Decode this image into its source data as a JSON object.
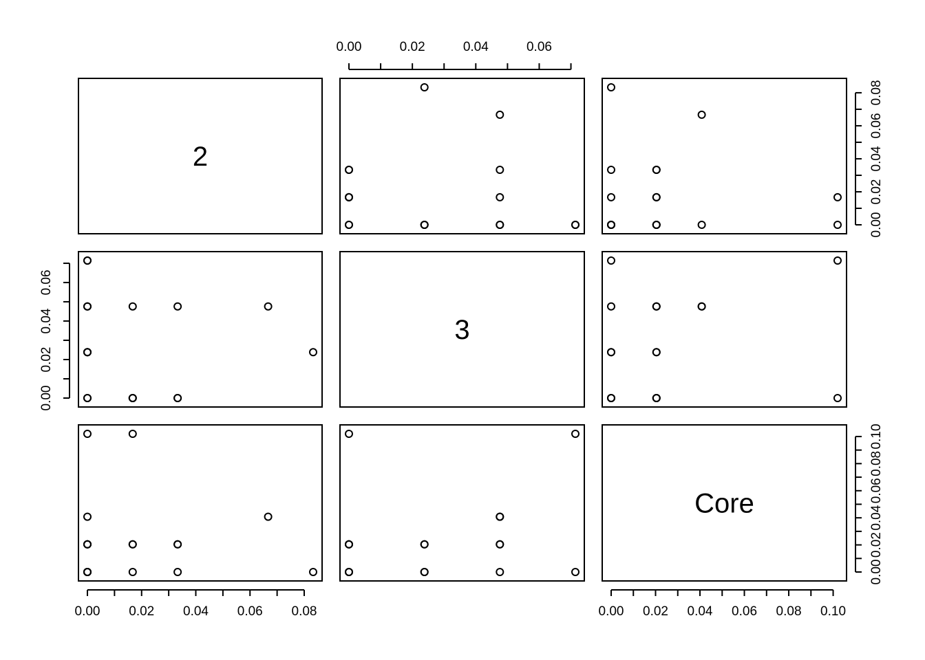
{
  "chart_data": {
    "type": "scatter",
    "kind": "pairs-scatterplot-matrix",
    "title": "",
    "variables": [
      "2",
      "3",
      "Core"
    ],
    "grid": false,
    "legend": "none",
    "axes": {
      "2": {
        "range": [
          0,
          0.0833
        ],
        "ticks": [
          0,
          0.02,
          0.04,
          0.06,
          0.08
        ],
        "tick_labels": [
          "0.00",
          "0.02",
          "0.04",
          "0.06",
          "0.08"
        ]
      },
      "3": {
        "range": [
          0,
          0.0714
        ],
        "ticks": [
          0,
          0.02,
          0.04,
          0.06
        ],
        "tick_labels": [
          "0.00",
          "0.02",
          "0.04",
          "0.06"
        ]
      },
      "Core": {
        "range": [
          0,
          0.102
        ],
        "ticks": [
          0,
          0.02,
          0.04,
          0.06,
          0.08,
          0.1
        ],
        "tick_labels": [
          "0.00",
          "0.02",
          "0.04",
          "0.06",
          "0.08",
          "0.10"
        ]
      }
    },
    "axis_placement": {
      "top": [
        "3"
      ],
      "bottom": [
        "2",
        "Core"
      ],
      "left": [
        "3"
      ],
      "right": [
        "2",
        "Core"
      ]
    },
    "observations": [
      {
        "v2": 0.0833,
        "v3": 0.0238,
        "core": 0.0
      },
      {
        "v2": 0.0667,
        "v3": 0.0476,
        "core": 0.0408
      },
      {
        "v2": 0.0333,
        "v3": 0.0,
        "core": 0.0
      },
      {
        "v2": 0.0333,
        "v3": 0.0476,
        "core": 0.0204
      },
      {
        "v2": 0.0333,
        "v3": 0.0,
        "core": 0.0204
      },
      {
        "v2": 0.0167,
        "v3": 0.0,
        "core": 0.0
      },
      {
        "v2": 0.0167,
        "v3": 0.0476,
        "core": 0.0204
      },
      {
        "v2": 0.0167,
        "v3": 0.0,
        "core": 0.102
      },
      {
        "v2": 0.0167,
        "v3": 0.0,
        "core": 0.0204
      },
      {
        "v2": 0.0,
        "v3": 0.0,
        "core": 0.0
      },
      {
        "v2": 0.0,
        "v3": 0.0238,
        "core": 0.0
      },
      {
        "v2": 0.0,
        "v3": 0.0476,
        "core": 0.0
      },
      {
        "v2": 0.0,
        "v3": 0.0714,
        "core": 0.0
      },
      {
        "v2": 0.0,
        "v3": 0.0,
        "core": 0.0204
      },
      {
        "v2": 0.0,
        "v3": 0.0238,
        "core": 0.0204
      },
      {
        "v2": 0.0,
        "v3": 0.0476,
        "core": 0.0408
      },
      {
        "v2": 0.0,
        "v3": 0.0714,
        "core": 0.102
      },
      {
        "v2": 0.0,
        "v3": 0.0238,
        "core": 0.0204
      }
    ]
  }
}
